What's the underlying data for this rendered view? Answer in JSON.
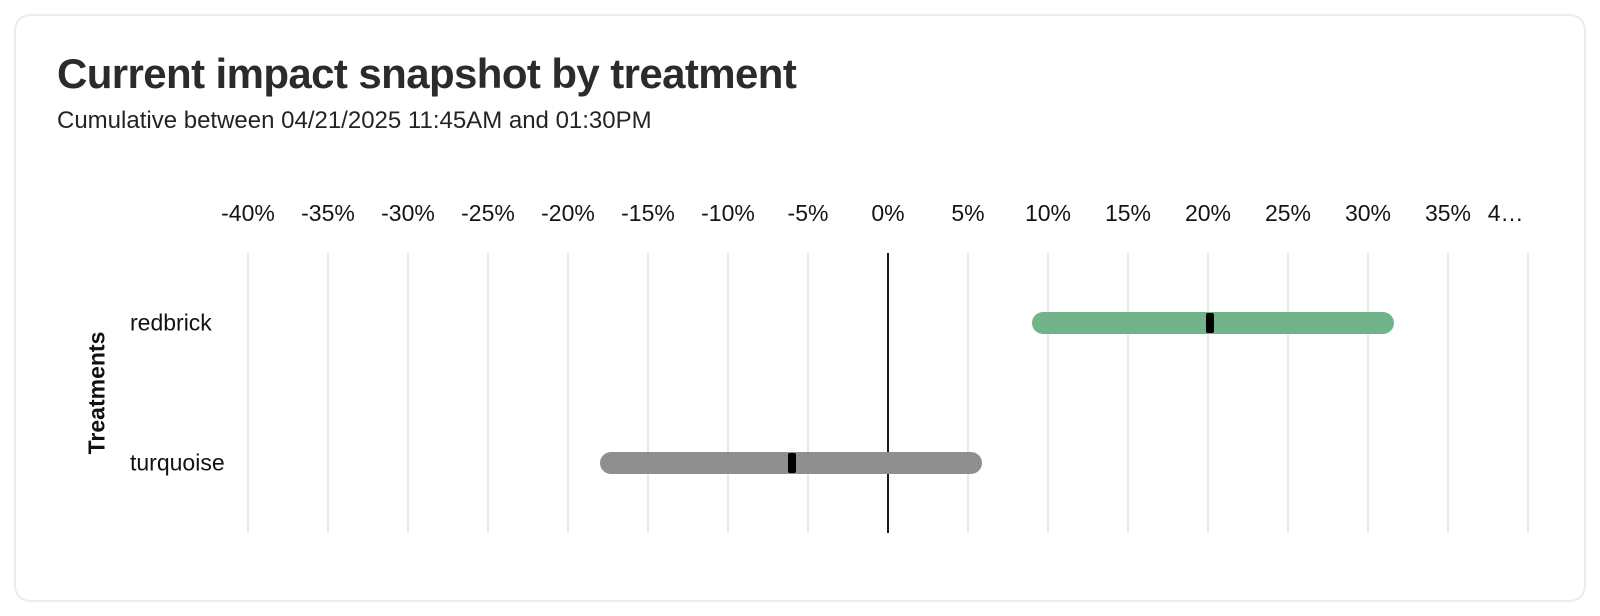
{
  "chart_data": {
    "type": "bar",
    "variant": "horizontal-interval-bars-with-point-estimates",
    "title": "Current impact snapshot by treatment",
    "subtitle": "Cumulative between 04/21/2025 11:45AM and 01:30PM",
    "ylabel": "Treatments",
    "xlabel": "",
    "x_unit": "percent",
    "xlim": [
      -40,
      40
    ],
    "grid": true,
    "legend_position": "none",
    "x_tick_labels": [
      {
        "value": -40,
        "label": "-40%"
      },
      {
        "value": -35,
        "label": "-35%"
      },
      {
        "value": -30,
        "label": "-30%"
      },
      {
        "value": -25,
        "label": "-25%"
      },
      {
        "value": -20,
        "label": "-20%"
      },
      {
        "value": -15,
        "label": "-15%"
      },
      {
        "value": -10,
        "label": "-10%"
      },
      {
        "value": -5,
        "label": "-5%"
      },
      {
        "value": 0,
        "label": "0%"
      },
      {
        "value": 5,
        "label": "5%"
      },
      {
        "value": 10,
        "label": "10%"
      },
      {
        "value": 15,
        "label": "15%"
      },
      {
        "value": 20,
        "label": "20%"
      },
      {
        "value": 25,
        "label": "25%"
      },
      {
        "value": 30,
        "label": "30%"
      },
      {
        "value": 35,
        "label": "35%"
      },
      {
        "value": 38.6,
        "label": "4…"
      }
    ],
    "x_gridlines": [
      -40,
      -35,
      -30,
      -25,
      -20,
      -15,
      -10,
      -5,
      5,
      10,
      15,
      20,
      25,
      30,
      35,
      40
    ],
    "zero_line_value": 0,
    "categories": [
      "redbrick",
      "turquoise"
    ],
    "series": [
      {
        "name": "redbrick",
        "ci_low": 9.0,
        "ci_high": 31.6,
        "estimate": 20.1,
        "color": "#72b489"
      },
      {
        "name": "turquoise",
        "ci_low": -18.0,
        "ci_high": 5.9,
        "estimate": -6.0,
        "color": "#8f8f8f"
      }
    ]
  },
  "colors": {
    "gridline": "#e8e8e8",
    "zero_line": "#1a1a1a",
    "estimate_marker": "#000000",
    "card_border": "#ececec",
    "title_text": "#2b2b2b",
    "axis_text": "#141414"
  }
}
